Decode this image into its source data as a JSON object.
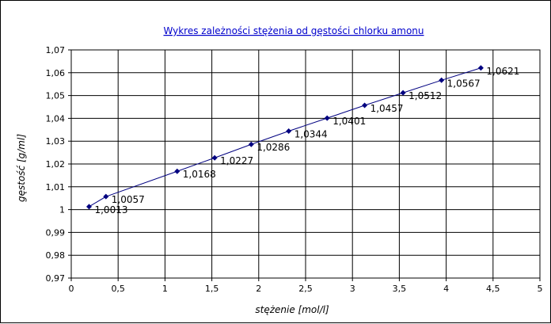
{
  "chart_data": {
    "type": "scatter",
    "title": "Wykres zależności stężenia od gęstości chlorku amonu",
    "xlabel": "stężenie [mol/l]",
    "ylabel": "gęstość [g/ml]",
    "xlim": [
      0,
      5
    ],
    "ylim": [
      0.97,
      1.07
    ],
    "x_ticks": [
      "0",
      "0,5",
      "1",
      "1,5",
      "2",
      "2,5",
      "3",
      "3,5",
      "4",
      "4,5",
      "5"
    ],
    "y_ticks": [
      "0,97",
      "0,98",
      "0,99",
      "1",
      "1,01",
      "1,02",
      "1,03",
      "1,04",
      "1,05",
      "1,06",
      "1,07"
    ],
    "grid": true,
    "legend": "none",
    "colors": {
      "series": "#000080",
      "grid": "#000000",
      "title": "#0000cc"
    },
    "series": [
      {
        "x": [
          0.19,
          0.37,
          1.13,
          1.53,
          1.92,
          2.32,
          2.73,
          3.13,
          3.54,
          3.95,
          4.37
        ],
        "y": [
          1.0013,
          1.0057,
          1.0168,
          1.0227,
          1.0286,
          1.0344,
          1.0401,
          1.0457,
          1.0512,
          1.0567,
          1.0621
        ],
        "labels": [
          "1,0013",
          "1,0057",
          "1,0168",
          "1,0227",
          "1,0286",
          "1,0344",
          "1,0401",
          "1,0457",
          "1,0512",
          "1,0567",
          "1,0621"
        ]
      }
    ]
  }
}
